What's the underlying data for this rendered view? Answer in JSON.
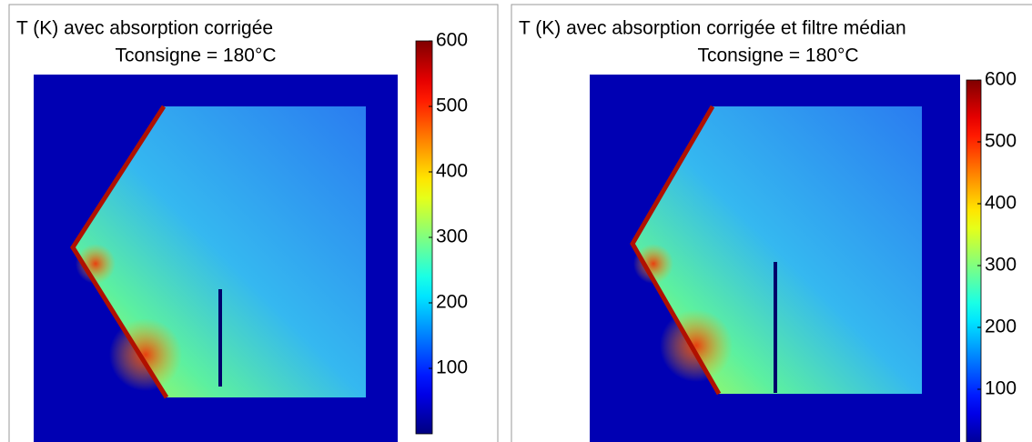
{
  "chart_data": [
    {
      "type": "heatmap",
      "title": "T (K) avec absorption corrigée",
      "subtitle": "Tconsigne = 180°C",
      "colormap": "jet",
      "zlim": [
        0,
        600
      ],
      "zticks": [
        100,
        200,
        300,
        400,
        500,
        600
      ]
    },
    {
      "type": "heatmap",
      "title": "T (K) avec absorption corrigée et filtre médian",
      "subtitle": "Tconsigne = 180°C",
      "colormap": "jet",
      "zlim": [
        0,
        600
      ],
      "zticks": [
        100,
        200,
        300,
        400,
        500,
        600
      ]
    }
  ]
}
